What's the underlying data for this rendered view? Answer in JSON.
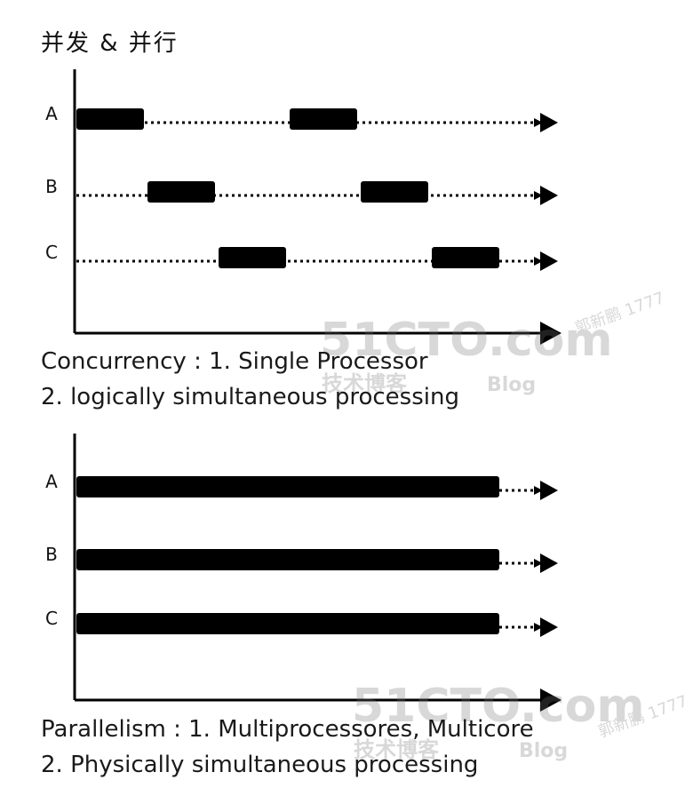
{
  "title": "并发 & 并行",
  "concurrency": {
    "rows": [
      {
        "label": "A",
        "busy": [
          [
            0,
            1
          ],
          [
            3,
            4
          ]
        ]
      },
      {
        "label": "B",
        "busy": [
          [
            1,
            2
          ],
          [
            4,
            5
          ]
        ]
      },
      {
        "label": "C",
        "busy": [
          [
            2,
            3
          ],
          [
            5,
            6
          ]
        ]
      }
    ],
    "caption_line1": "Concurrency : 1. Single Processor",
    "caption_line2": "2. logically simultaneous processing"
  },
  "parallelism": {
    "rows": [
      {
        "label": "A",
        "busy": [
          [
            0,
            6
          ]
        ]
      },
      {
        "label": "B",
        "busy": [
          [
            0,
            6
          ]
        ]
      },
      {
        "label": "C",
        "busy": [
          [
            0,
            6
          ]
        ]
      }
    ],
    "caption_line1": "Parallelism : 1. Multiprocessores, Multicore",
    "caption_line2": "2. Physically simultaneous processing"
  },
  "watermark": {
    "logo": "51CTO.com",
    "sub": "技术博客",
    "blog": "Blog",
    "author": "郭新鹏 1777"
  }
}
